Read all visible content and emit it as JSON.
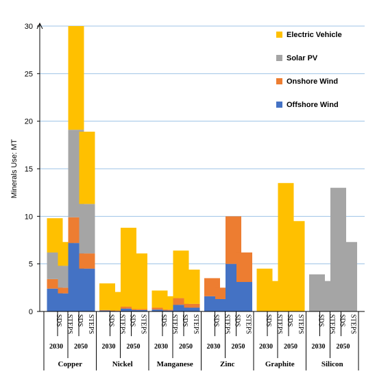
{
  "chart_data": {
    "type": "bar",
    "stacked": true,
    "ylabel": "Minerals Use: MT",
    "ylim": [
      0,
      30
    ],
    "yticks": [
      0,
      5,
      10,
      15,
      20,
      25,
      30
    ],
    "grid": true,
    "legend_position": "top-right",
    "minerals": [
      "Copper",
      "Nickel",
      "Manganese",
      "Zinc",
      "Graphite",
      "Silicon"
    ],
    "years": [
      "2030",
      "2050"
    ],
    "scenarios": [
      "SDS",
      "STEPS"
    ],
    "categories": [
      "Copper SDS 2030",
      "Copper STEPS 2030",
      "Copper SDS 2050",
      "Copper STEPS 2050",
      "Nickel SDS 2030",
      "Nickel STEPS 2030",
      "Nickel SDS 2050",
      "Nickel STEPS 2050",
      "Manganese SDS 2030",
      "Manganese STEPS 2030",
      "Manganese SDS 2050",
      "Manganese STEPS 2050",
      "Zinc SDS 2030",
      "Zinc STEPS 2030",
      "Zinc SDS 2050",
      "Zinc STEPS 2050",
      "Graphite SDS 2030",
      "Graphite STEPS 2030",
      "Graphite SDS 2050",
      "Graphite STEPS 2050",
      "Silicon SDS 2030",
      "Silicon STEPS 2030",
      "Silicon SDS 2050",
      "Silicon STEPS 2050"
    ],
    "series": [
      {
        "name": "Offshore Wind",
        "color": "#4472c4",
        "values": [
          2.4,
          1.9,
          7.2,
          4.5,
          0.1,
          0.05,
          0.3,
          0.15,
          0.2,
          0.1,
          0.7,
          0.4,
          1.6,
          1.3,
          5.0,
          3.1,
          0,
          0,
          0,
          0,
          0,
          0,
          0,
          0
        ]
      },
      {
        "name": "Onshore Wind",
        "color": "#ed7d31",
        "values": [
          1.0,
          0.6,
          2.7,
          1.6,
          0.05,
          0.05,
          0.2,
          0.1,
          0.2,
          0.1,
          0.7,
          0.4,
          1.9,
          1.2,
          5.0,
          3.1,
          0,
          0,
          0,
          0,
          0,
          0,
          0,
          0
        ]
      },
      {
        "name": "Solar PV",
        "color": "#a5a5a5",
        "values": [
          2.8,
          2.3,
          9.2,
          5.2,
          0,
          0,
          0,
          0,
          0,
          0,
          0,
          0,
          0,
          0,
          0,
          0,
          0,
          0,
          0,
          0,
          3.9,
          3.2,
          13.0,
          7.3
        ]
      },
      {
        "name": "Electric Vehicle",
        "color": "#ffc000",
        "values": [
          3.6,
          2.5,
          10.9,
          7.6,
          2.8,
          1.95,
          8.3,
          5.85,
          1.8,
          1.4,
          5.0,
          3.6,
          0,
          0,
          0,
          0,
          4.5,
          3.2,
          13.5,
          9.5,
          0,
          0,
          0,
          0
        ]
      }
    ]
  }
}
